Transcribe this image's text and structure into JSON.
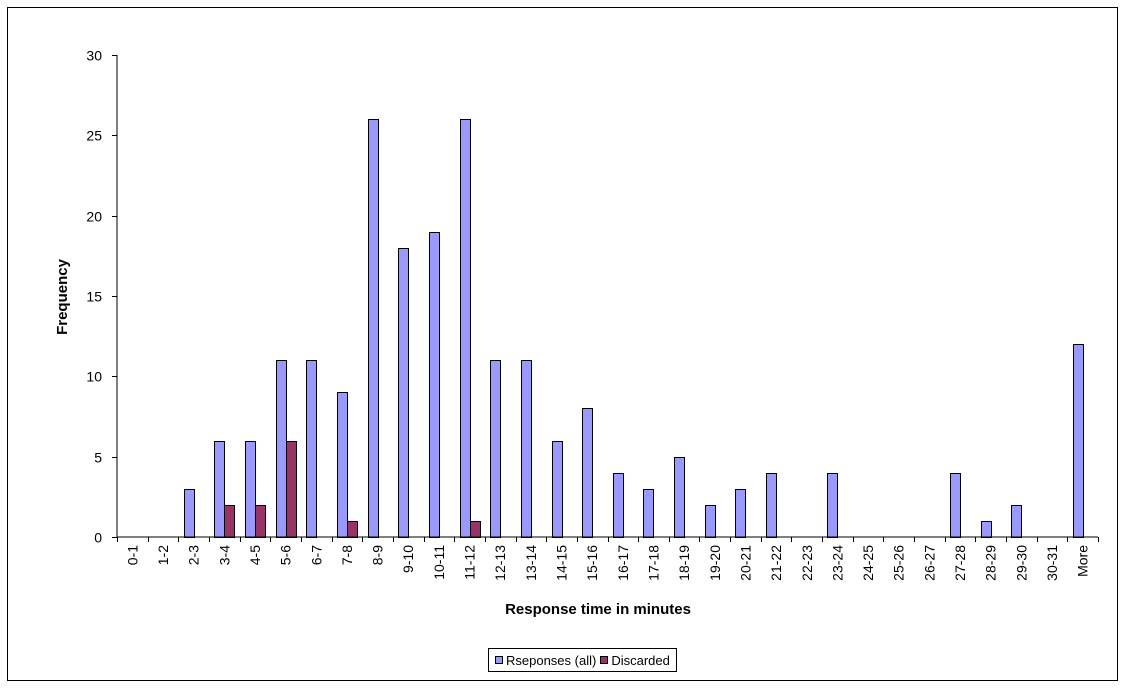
{
  "colors": {
    "series_all": "#9999FF",
    "series_discarded": "#993366",
    "axis": "#000000"
  },
  "chart_data": {
    "type": "bar",
    "title": "",
    "xlabel": "Response time in minutes",
    "ylabel": "Frequency",
    "ylim": [
      0,
      30
    ],
    "yticks": [
      0,
      5,
      10,
      15,
      20,
      25,
      30
    ],
    "grid": false,
    "legend_position": "bottom",
    "categories": [
      "0-1",
      "1-2",
      "2-3",
      "3-4",
      "4-5",
      "5-6",
      "6-7",
      "7-8",
      "8-9",
      "9-10",
      "10-11",
      "11-12",
      "12-13",
      "13-14",
      "14-15",
      "15-16",
      "16-17",
      "17-18",
      "18-19",
      "19-20",
      "20-21",
      "21-22",
      "22-23",
      "23-24",
      "24-25",
      "25-26",
      "26-27",
      "27-28",
      "28-29",
      "29-30",
      "30-31",
      "More"
    ],
    "series": [
      {
        "name": "Rseponses (all)",
        "values": [
          0,
          0,
          3,
          6,
          6,
          11,
          11,
          9,
          26,
          18,
          19,
          26,
          11,
          11,
          6,
          8,
          4,
          3,
          5,
          2,
          3,
          4,
          0,
          4,
          0,
          0,
          0,
          4,
          1,
          2,
          0,
          12
        ]
      },
      {
        "name": "Discarded",
        "values": [
          0,
          0,
          0,
          2,
          2,
          6,
          0,
          1,
          0,
          0,
          0,
          1,
          0,
          0,
          0,
          0,
          0,
          0,
          0,
          0,
          0,
          0,
          0,
          0,
          0,
          0,
          0,
          0,
          0,
          0,
          0,
          0
        ]
      }
    ]
  }
}
